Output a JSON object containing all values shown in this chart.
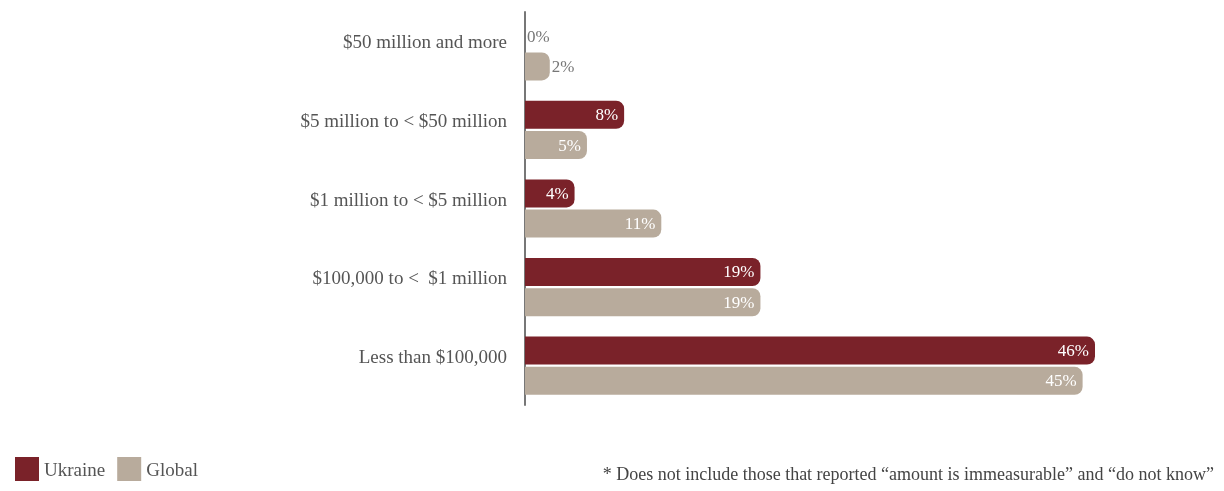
{
  "chart_data": {
    "type": "bar",
    "orientation": "horizontal",
    "categories": [
      "$50 million and more",
      "$5 million to < $50 million",
      "$1 million to < $5 million",
      "$100,000 to <  $1 million",
      "Less than $100,000"
    ],
    "series": [
      {
        "name": "Ukraine",
        "color": "#7a2229",
        "values": [
          0,
          8,
          4,
          19,
          46
        ],
        "value_labels": [
          "0%",
          "8%",
          "4%",
          "19%",
          "46%"
        ]
      },
      {
        "name": "Global",
        "color": "#b8ab9c",
        "values": [
          2,
          5,
          11,
          19,
          45
        ],
        "value_labels": [
          "2%",
          "5%",
          "11%",
          "19%",
          "45%"
        ]
      }
    ],
    "legend": "bottom left",
    "grid": false,
    "annotations": [
      "* Does not include those that reported “amount is immeasurable” and “do not know”"
    ]
  }
}
